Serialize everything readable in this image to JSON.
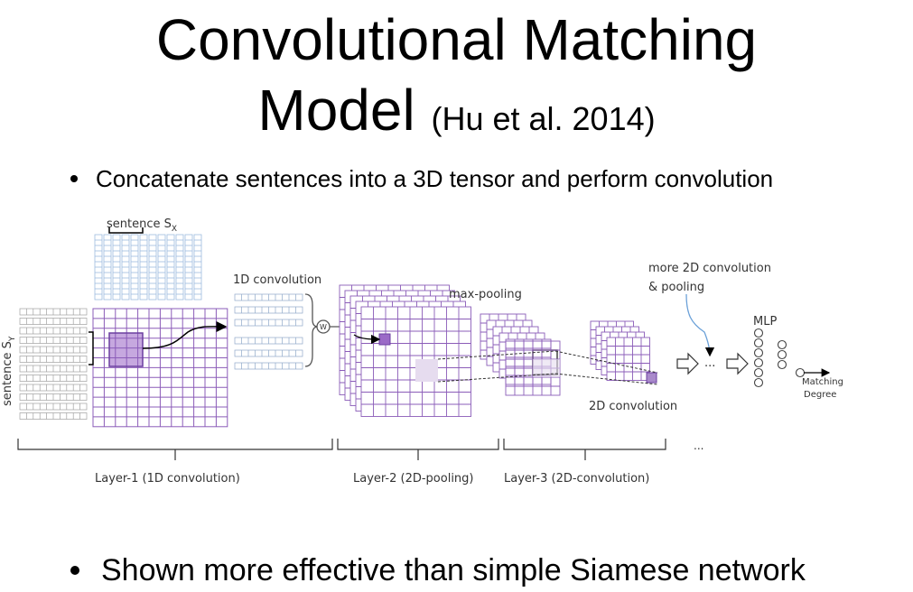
{
  "slide": {
    "title_line1": "Convolutional Matching",
    "title_line2_main": "Model",
    "title_line2_citation": "(Hu et al. 2014)",
    "bullets": [
      "Concatenate sentences into a 3D tensor and perform convolution",
      "Shown more effective than simple Siamese network"
    ]
  },
  "diagram": {
    "labels": {
      "sentence_x": "sentence S",
      "sentence_x_sub": "X",
      "sentence_y": "sentence S",
      "sentence_y_sub": "Y",
      "conv1d": "1D convolution",
      "maxpool": "max-pooling",
      "more_2d": "more 2D convolution",
      "pooling": "& pooling",
      "mlp": "MLP",
      "matching": "Matching",
      "degree": "Degree",
      "conv2d": "2D convolution",
      "weights_symbol": "W",
      "ellipsis": "...",
      "ellipsis_bottom": "..."
    },
    "layers": [
      "Layer-1  (1D convolution)",
      "Layer-2  (2D-pooling)",
      "Layer-3  (2D-convolution)"
    ],
    "colors": {
      "grid_blue": "#9dbbe0",
      "grid_gray": "#a0a0a0",
      "grid_purple": "#8b5cb8",
      "highlight_purple": "#c6a8df",
      "highlight_light": "#e6dcef",
      "callout_blue": "#6aa0d8"
    }
  }
}
